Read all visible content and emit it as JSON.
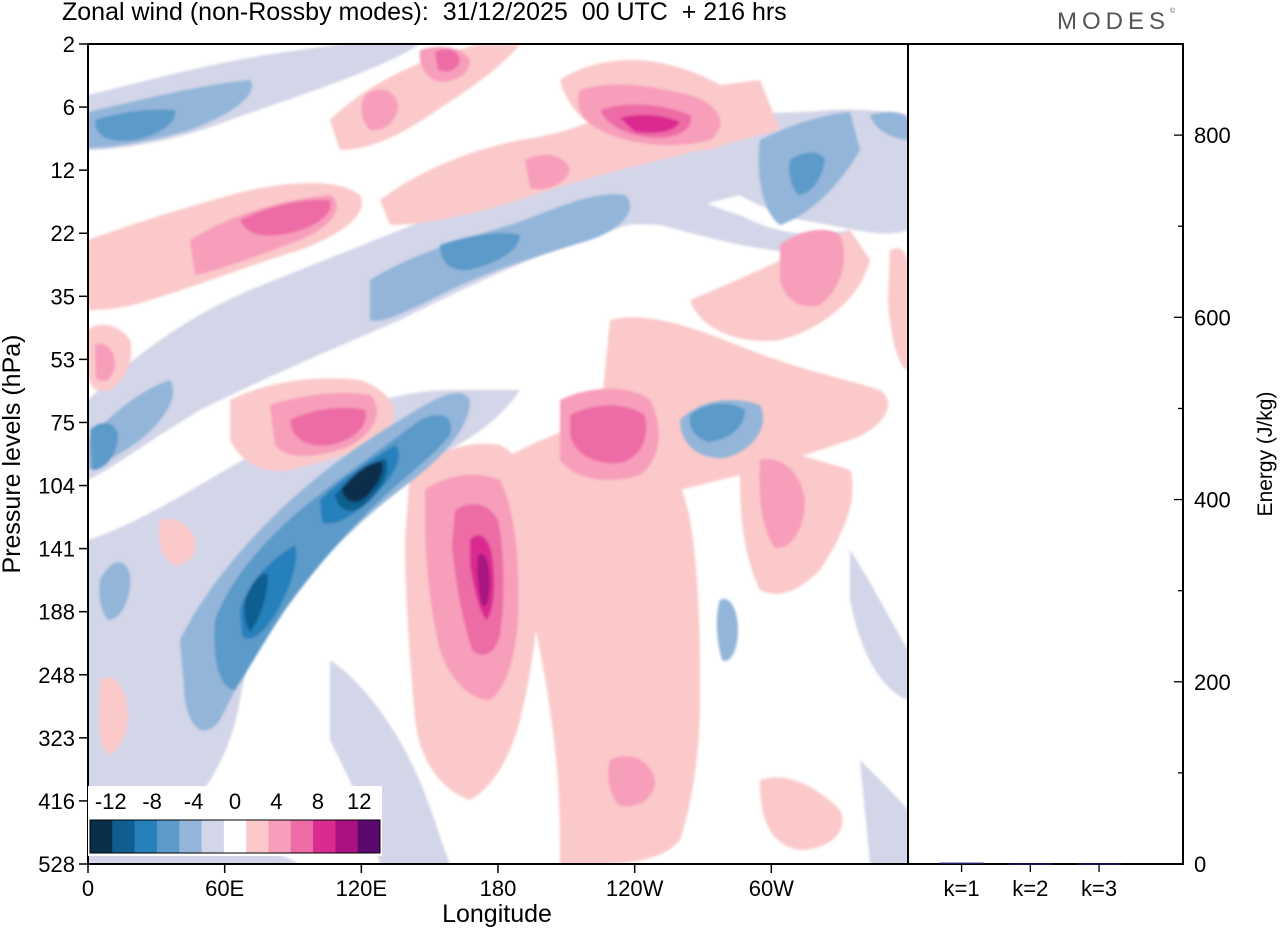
{
  "chart_data": [
    {
      "type": "heatmap",
      "title": "Zonal wind (non-Rossby modes):  31/12/2025  00 UTC  + 216 hrs",
      "xlabel": "Longitude",
      "ylabel": "Pressure levels (hPa)",
      "x_ticks": [
        {
          "lon": 0,
          "label": "0"
        },
        {
          "lon": 60,
          "label": "60E"
        },
        {
          "lon": 120,
          "label": "120E"
        },
        {
          "lon": 180,
          "label": "180"
        },
        {
          "lon": 240,
          "label": "120W"
        },
        {
          "lon": 300,
          "label": "60W"
        }
      ],
      "xlim": [
        0,
        360
      ],
      "y_ticks": [
        "2",
        "6",
        "12",
        "22",
        "35",
        "53",
        "75",
        "104",
        "141",
        "188",
        "248",
        "323",
        "416",
        "528"
      ],
      "colorbar": {
        "labels": [
          "-12",
          "-8",
          "-4",
          "0",
          "4",
          "8",
          "12"
        ],
        "label_values": [
          -12,
          -8,
          -4,
          0,
          4,
          8,
          12
        ],
        "levels": [
          -14,
          -12,
          -10,
          -8,
          -6,
          -4,
          -2,
          2,
          4,
          6,
          8,
          10,
          12,
          14
        ],
        "colors": [
          "#0a2f4b",
          "#0f5e8f",
          "#2880bb",
          "#5b9ac9",
          "#93b5d9",
          "#d3d5e8",
          "#ffffff",
          "#fbc9c9",
          "#f79ebb",
          "#ee6ca6",
          "#da2c90",
          "#a91280",
          "#5a0a6e"
        ]
      },
      "features": [
        {
          "lon": 122,
          "level": "104",
          "value": -14
        },
        {
          "lon": 69,
          "level": "188",
          "value": -12
        },
        {
          "lon": 174,
          "level": "141",
          "value": 12
        },
        {
          "lon": 227,
          "level": "75",
          "value": 8
        },
        {
          "lon": 96,
          "level": "75",
          "value": 8
        },
        {
          "lon": 96,
          "level": "22",
          "value": 8
        },
        {
          "lon": 254,
          "level": "6",
          "value": 10
        },
        {
          "lon": 160,
          "level": "22",
          "value": -6
        },
        {
          "lon": 275,
          "level": "75",
          "value": -8
        },
        {
          "lon": 15,
          "level": "6",
          "value": -6
        }
      ]
    },
    {
      "type": "bar",
      "categories": [
        "k=1",
        "k=2",
        "k=3"
      ],
      "values": [
        1.5,
        0.8,
        0.8
      ],
      "ylabel": "Energy (J/kg)",
      "ylim": [
        0,
        900
      ],
      "y_ticks": [
        0,
        200,
        400,
        600,
        800
      ],
      "bar_color": "#1a1a66"
    }
  ],
  "logo": {
    "text": "MODES",
    "mark": "©"
  }
}
